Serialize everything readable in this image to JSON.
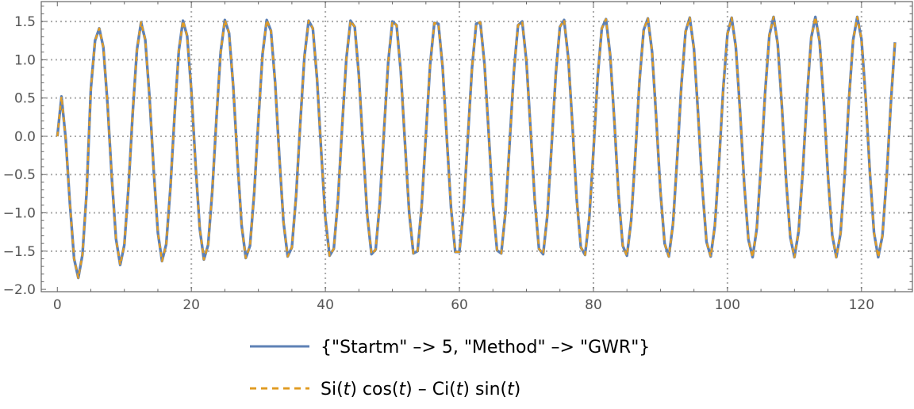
{
  "chart_data": {
    "type": "line",
    "title": "",
    "xlabel": "",
    "ylabel": "",
    "xlim": [
      -2.4,
      127.6
    ],
    "ylim": [
      -2.03,
      1.76
    ],
    "grid": true,
    "grid_style": "dotted",
    "x_ticks": [
      0,
      20,
      40,
      60,
      80,
      100,
      120
    ],
    "x_tick_labels": [
      "0",
      "20",
      "40",
      "60",
      "80",
      "100",
      "120"
    ],
    "y_ticks": [
      1.5,
      1.0,
      0.5,
      0.0,
      -0.5,
      -1.0,
      -1.5,
      -2.0
    ],
    "y_tick_labels": [
      "1.5",
      "1.0",
      "0.5",
      "0.0",
      "−0.5",
      "−1.0",
      "−1.5",
      "−2.0"
    ],
    "x_grid": [
      20,
      40,
      60,
      80,
      100,
      120
    ],
    "y_grid": [
      1.5,
      1.0,
      0.5,
      0.0,
      -0.5,
      -1.0,
      -1.5
    ],
    "legend_position": "bottom",
    "x": [
      0,
      0.625,
      1.25,
      1.875,
      2.5,
      3.125,
      3.75,
      4.375,
      5,
      5.625,
      6.25,
      6.875,
      7.5,
      8.125,
      8.75,
      9.375,
      10,
      10.625,
      11.25,
      11.875,
      12.5,
      13.125,
      13.75,
      14.375,
      15,
      15.625,
      16.25,
      16.875,
      17.5,
      18.125,
      18.75,
      19.375,
      20,
      20.625,
      21.25,
      21.875,
      22.5,
      23.125,
      23.75,
      24.375,
      25,
      25.625,
      26.25,
      26.875,
      27.5,
      28.125,
      28.75,
      29.375,
      30,
      30.625,
      31.25,
      31.875,
      32.5,
      33.125,
      33.75,
      34.375,
      35,
      35.625,
      36.25,
      36.875,
      37.5,
      38.125,
      38.75,
      39.375,
      40,
      40.625,
      41.25,
      41.875,
      42.5,
      43.125,
      43.75,
      44.375,
      45,
      45.625,
      46.25,
      46.875,
      47.5,
      48.125,
      48.75,
      49.375,
      50,
      50.625,
      51.25,
      51.875,
      52.5,
      53.125,
      53.75,
      54.375,
      55,
      55.625,
      56.25,
      56.875,
      57.5,
      58.125,
      58.75,
      59.375,
      60,
      60.625,
      61.25,
      61.875,
      62.5,
      63.125,
      63.75,
      64.375,
      65,
      65.625,
      66.25,
      66.875,
      67.5,
      68.125,
      68.75,
      69.375,
      70,
      70.625,
      71.25,
      71.875,
      72.5,
      73.125,
      73.75,
      74.375,
      75,
      75.625,
      76.25,
      76.875,
      77.5,
      78.125,
      78.75,
      79.375,
      80,
      80.625,
      81.25,
      81.875,
      82.5,
      83.125,
      83.75,
      84.375,
      85,
      85.625,
      86.25,
      86.875,
      87.5,
      88.125,
      88.75,
      89.375,
      90,
      90.625,
      91.25,
      91.875,
      92.5,
      93.125,
      93.75,
      94.375,
      95,
      95.625,
      96.25,
      96.875,
      97.5,
      98.125,
      98.75,
      99.375,
      100,
      100.625,
      101.25,
      101.875,
      102.5,
      103.125,
      103.75,
      104.375,
      105,
      105.625,
      106.25,
      106.875,
      107.5,
      108.125,
      108.75,
      109.375,
      110,
      110.625,
      111.25,
      111.875,
      112.5,
      113.125,
      113.75,
      114.375,
      115,
      115.625,
      116.25,
      116.875,
      117.5,
      118.125,
      118.75,
      119.375,
      120,
      120.625,
      121.25,
      121.875,
      122.5,
      123.125,
      123.75,
      124.375,
      125
    ],
    "series": [
      {
        "name": "{\"Startm\" –> 5, \"Method\" –> \"GWR\"}",
        "color": "#5E81B5",
        "style": "solid",
        "values": [
          0,
          0.52,
          -0.03,
          -0.88,
          -1.6,
          -1.85,
          -1.55,
          -0.73,
          0.62,
          1.25,
          1.41,
          1.16,
          0.41,
          -0.54,
          -1.34,
          -1.68,
          -1.42,
          -0.66,
          0.31,
          1.13,
          1.49,
          1.26,
          0.52,
          -0.44,
          -1.26,
          -1.63,
          -1.41,
          -0.67,
          0.29,
          1.12,
          1.51,
          1.31,
          0.59,
          -0.37,
          -1.21,
          -1.61,
          -1.42,
          -0.71,
          0.25,
          1.1,
          1.52,
          1.35,
          0.65,
          -0.31,
          -1.16,
          -1.59,
          -1.43,
          -0.74,
          0.21,
          1.07,
          1.52,
          1.38,
          0.7,
          -0.25,
          -1.12,
          -1.57,
          -1.45,
          -0.78,
          0.16,
          1.04,
          1.51,
          1.41,
          0.75,
          -0.19,
          -1.07,
          -1.56,
          -1.47,
          -0.83,
          0.12,
          1.01,
          1.51,
          1.43,
          0.8,
          -0.14,
          -1.03,
          -1.54,
          -1.48,
          -0.87,
          0.07,
          0.97,
          1.5,
          1.45,
          0.85,
          -0.08,
          -0.99,
          -1.53,
          -1.5,
          -0.91,
          0.02,
          0.93,
          1.48,
          1.47,
          0.9,
          -0.03,
          -0.94,
          -1.51,
          -1.51,
          -0.95,
          -0.03,
          0.89,
          1.47,
          1.49,
          0.94,
          0.03,
          -0.9,
          -1.49,
          -1.53,
          -0.99,
          -0.08,
          0.85,
          1.45,
          1.5,
          0.98,
          0.08,
          -0.85,
          -1.47,
          -1.54,
          -1.03,
          -0.13,
          0.81,
          1.43,
          1.52,
          1.02,
          0.13,
          -0.81,
          -1.45,
          -1.55,
          -1.07,
          -0.19,
          0.76,
          1.41,
          1.53,
          1.06,
          0.19,
          -0.76,
          -1.43,
          -1.56,
          -1.1,
          -0.24,
          0.72,
          1.39,
          1.54,
          1.1,
          0.24,
          -0.72,
          -1.4,
          -1.57,
          -1.14,
          -0.29,
          0.67,
          1.37,
          1.55,
          1.14,
          0.29,
          -0.67,
          -1.38,
          -1.57,
          -1.17,
          -0.34,
          0.63,
          1.34,
          1.55,
          1.17,
          0.34,
          -0.62,
          -1.35,
          -1.58,
          -1.21,
          -0.39,
          0.58,
          1.32,
          1.56,
          1.21,
          0.39,
          -0.57,
          -1.32,
          -1.58,
          -1.24,
          -0.44,
          0.53,
          1.29,
          1.56,
          1.24,
          0.45,
          -0.52,
          -1.29,
          -1.58,
          -1.27,
          -0.49,
          0.48,
          1.26,
          1.56,
          1.27,
          0.5,
          -0.47,
          -1.26,
          -1.58,
          -1.3,
          -0.54,
          0.43,
          1.23
        ]
      },
      {
        "name": "Si(t) cos(t) – Ci(t) sin(t)",
        "color": "#E19C24",
        "style": "dashed",
        "values": [
          0,
          0.52,
          -0.03,
          -0.88,
          -1.6,
          -1.85,
          -1.55,
          -0.73,
          0.62,
          1.25,
          1.41,
          1.16,
          0.41,
          -0.54,
          -1.34,
          -1.68,
          -1.42,
          -0.66,
          0.31,
          1.13,
          1.49,
          1.26,
          0.52,
          -0.44,
          -1.26,
          -1.63,
          -1.41,
          -0.67,
          0.29,
          1.12,
          1.51,
          1.31,
          0.59,
          -0.37,
          -1.21,
          -1.61,
          -1.42,
          -0.71,
          0.25,
          1.1,
          1.52,
          1.35,
          0.65,
          -0.31,
          -1.16,
          -1.59,
          -1.43,
          -0.74,
          0.21,
          1.07,
          1.52,
          1.38,
          0.7,
          -0.25,
          -1.12,
          -1.57,
          -1.45,
          -0.78,
          0.16,
          1.04,
          1.51,
          1.41,
          0.75,
          -0.19,
          -1.07,
          -1.56,
          -1.47,
          -0.83,
          0.12,
          1.01,
          1.51,
          1.43,
          0.8,
          -0.14,
          -1.03,
          -1.54,
          -1.48,
          -0.87,
          0.07,
          0.97,
          1.5,
          1.45,
          0.85,
          -0.08,
          -0.99,
          -1.53,
          -1.5,
          -0.91,
          0.02,
          0.93,
          1.48,
          1.47,
          0.9,
          -0.03,
          -0.94,
          -1.51,
          -1.51,
          -0.95,
          -0.03,
          0.89,
          1.47,
          1.49,
          0.94,
          0.03,
          -0.9,
          -1.49,
          -1.53,
          -0.99,
          -0.08,
          0.85,
          1.45,
          1.5,
          0.98,
          0.08,
          -0.85,
          -1.47,
          -1.54,
          -1.03,
          -0.13,
          0.81,
          1.43,
          1.52,
          1.02,
          0.13,
          -0.81,
          -1.45,
          -1.55,
          -1.07,
          -0.19,
          0.76,
          1.41,
          1.53,
          1.06,
          0.19,
          -0.76,
          -1.43,
          -1.56,
          -1.1,
          -0.24,
          0.72,
          1.39,
          1.54,
          1.1,
          0.24,
          -0.72,
          -1.4,
          -1.57,
          -1.14,
          -0.29,
          0.67,
          1.37,
          1.55,
          1.14,
          0.29,
          -0.67,
          -1.38,
          -1.57,
          -1.17,
          -0.34,
          0.63,
          1.34,
          1.55,
          1.17,
          0.34,
          -0.62,
          -1.35,
          -1.58,
          -1.21,
          -0.39,
          0.58,
          1.32,
          1.56,
          1.21,
          0.39,
          -0.57,
          -1.32,
          -1.58,
          -1.24,
          -0.44,
          0.53,
          1.29,
          1.56,
          1.24,
          0.45,
          -0.52,
          -1.29,
          -1.58,
          -1.27,
          -0.49,
          0.48,
          1.26,
          1.56,
          1.27,
          0.5,
          -0.47,
          -1.26,
          -1.58,
          -1.3,
          -0.54,
          0.43,
          1.23
        ]
      }
    ]
  },
  "legend": {
    "items": [
      {
        "label": "{\"Startm\" –> 5, \"Method\" –> \"GWR\"}"
      },
      {
        "label_parts": [
          "Si(",
          "t",
          ") cos(",
          "t",
          ") – Ci(",
          "t",
          ") sin(",
          "t",
          ")"
        ]
      }
    ]
  }
}
